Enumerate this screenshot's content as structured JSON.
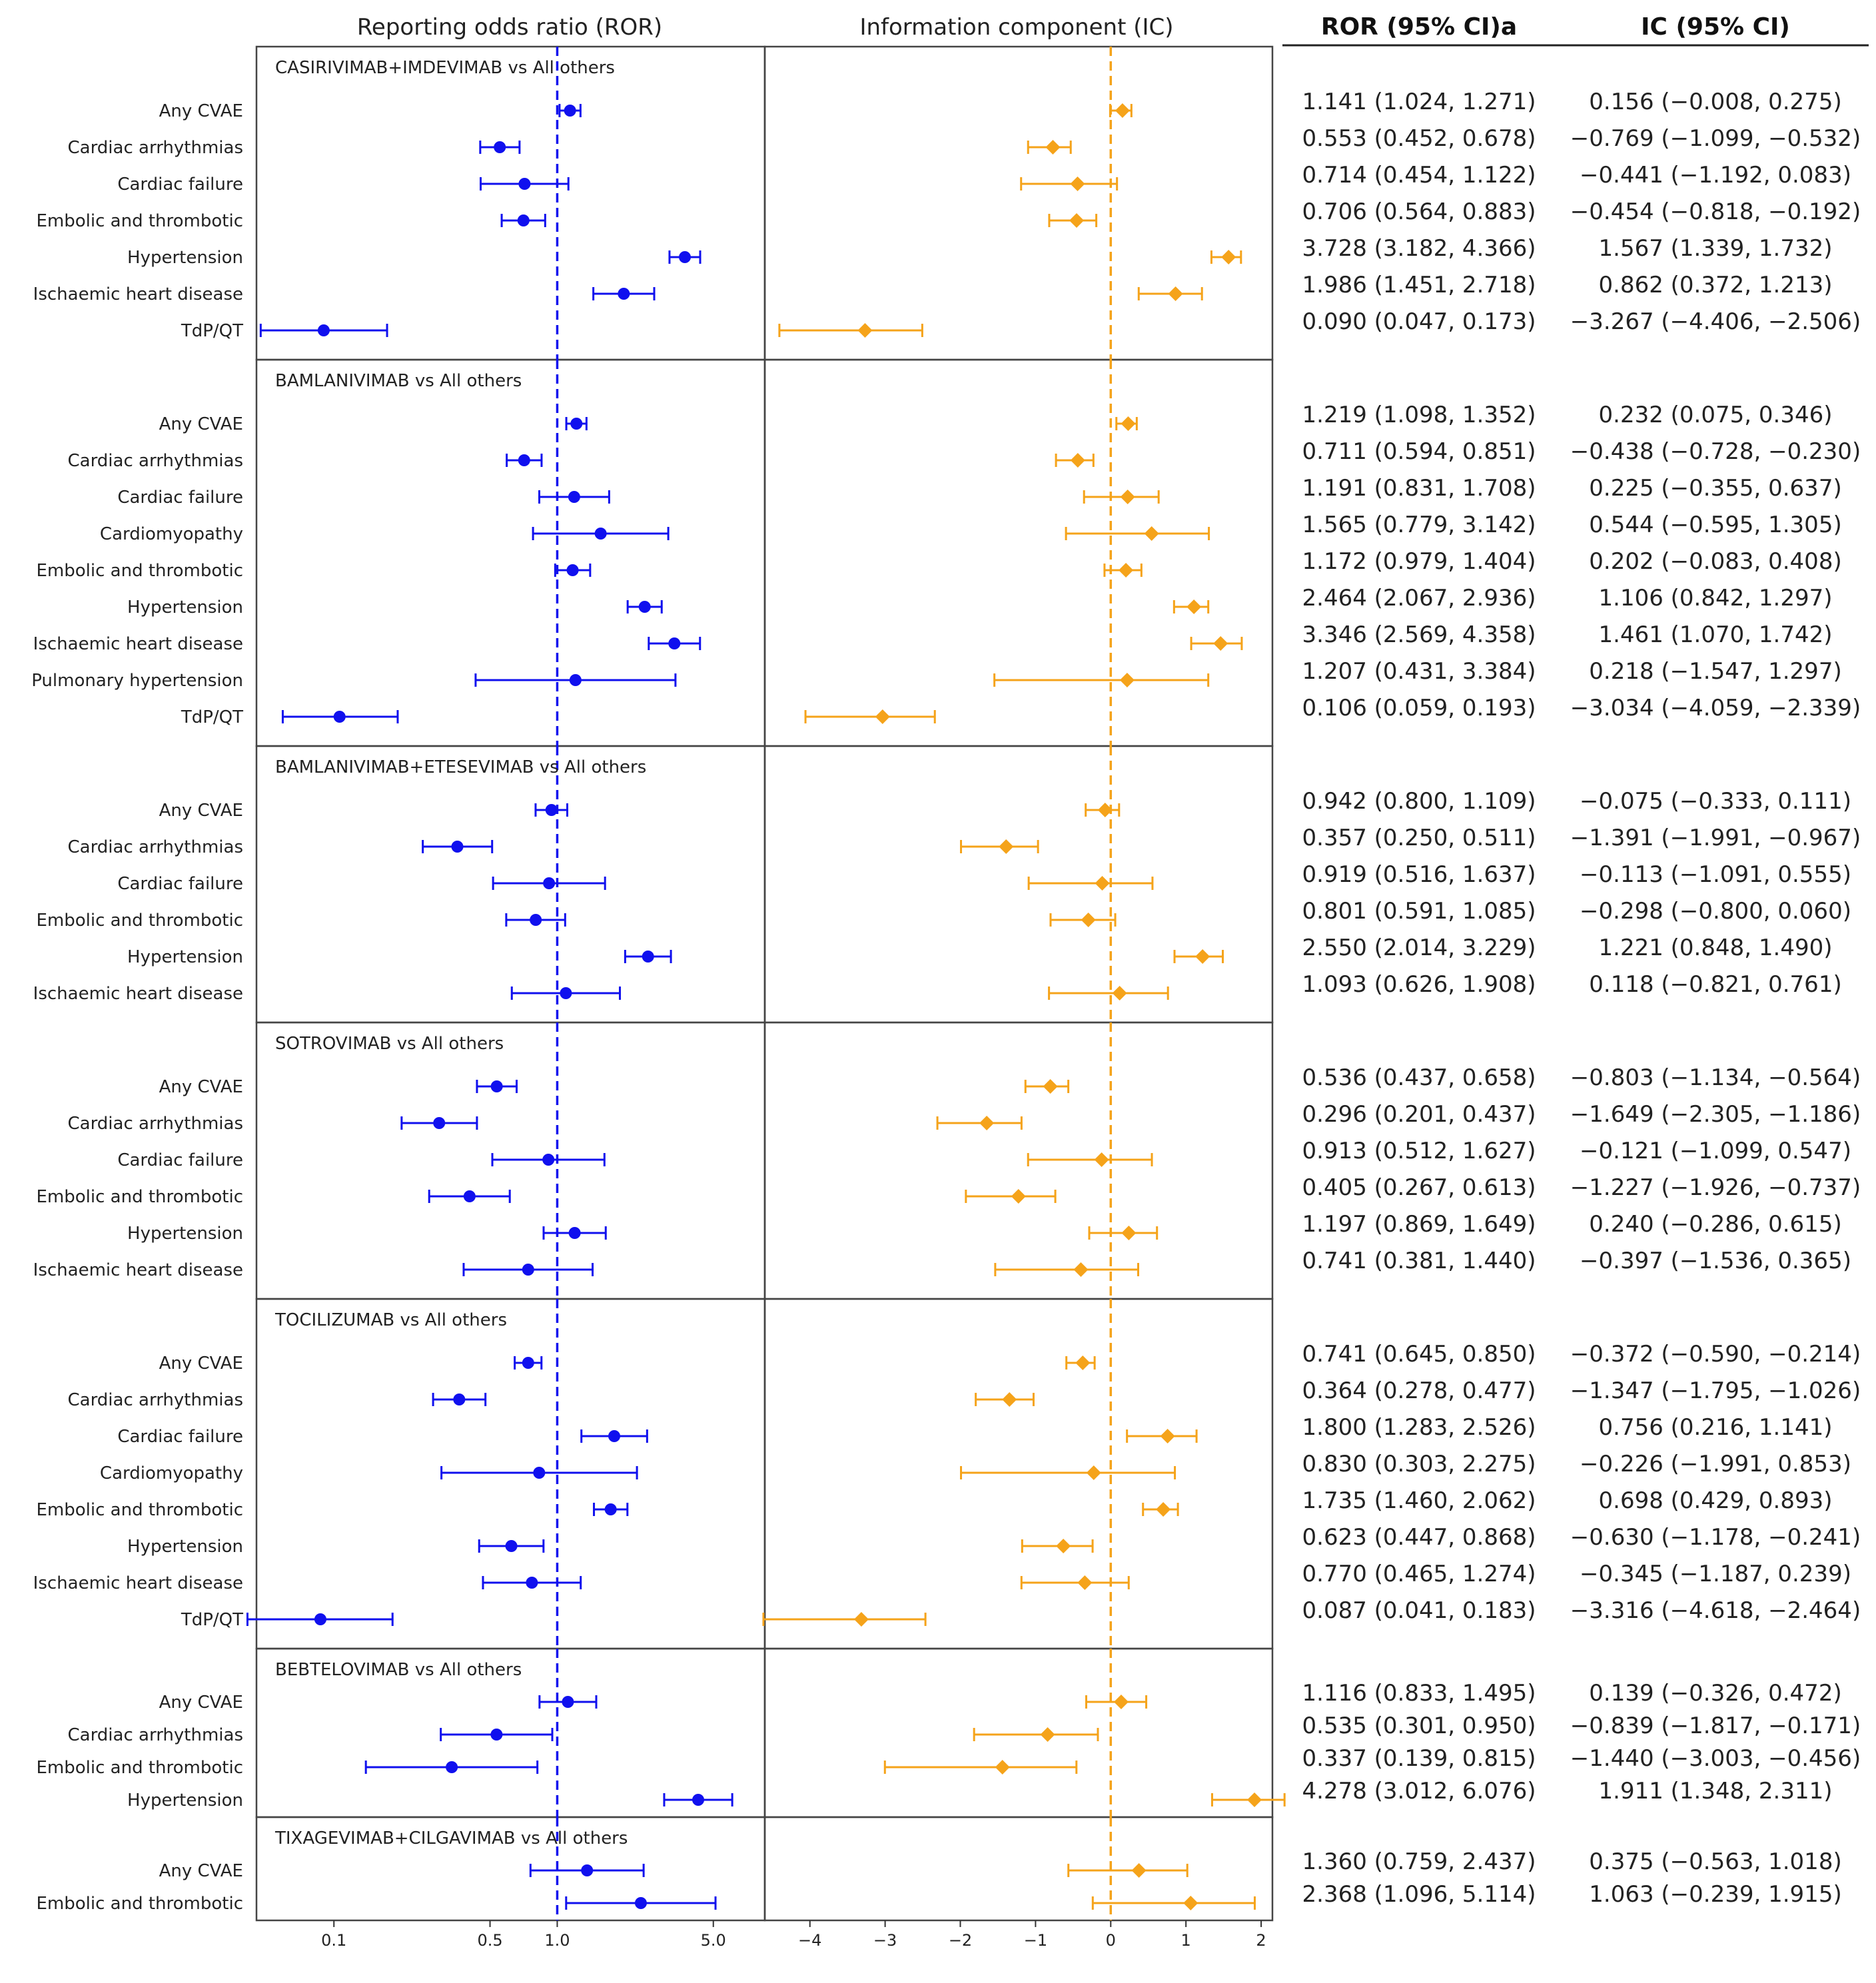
{
  "headers": {
    "ror_plot": "Reporting odds ratio (ROR)",
    "ic_plot": "Information component (IC)",
    "ror_col": "ROR (95% CI)a",
    "ic_col": "IC (95% CI)"
  },
  "colors": {
    "ror": "#1010ee",
    "ic": "#f5a31a"
  },
  "chart_data": {
    "type": "forest",
    "ror_axis": {
      "scale": "log",
      "xlim": [
        0.045,
        8.5
      ],
      "ticks": [
        0.1,
        0.5,
        1.0,
        5.0
      ],
      "tick_labels": [
        "0.1",
        "0.5",
        "1.0",
        "5.0"
      ],
      "reference": 1.0
    },
    "ic_axis": {
      "scale": "linear",
      "xlim": [
        -4.6,
        2.15
      ],
      "ticks": [
        -4,
        -3,
        -2,
        -1,
        0,
        1,
        2
      ],
      "tick_labels": [
        "−4",
        "−3",
        "−2",
        "−1",
        "0",
        "1",
        "2"
      ],
      "reference": 0
    },
    "groups": [
      {
        "title": "CASIRIVIMAB+IMDEVIMAB vs All others",
        "rows": [
          {
            "label": "Any CVAE",
            "ror": 1.141,
            "ror_lo": 1.024,
            "ror_hi": 1.271,
            "ic": 0.156,
            "ic_lo": -0.008,
            "ic_hi": 0.275,
            "ror_text": "1.141 (1.024, 1.271)",
            "ic_text": "0.156 (−0.008, 0.275)"
          },
          {
            "label": "Cardiac arrhythmias",
            "ror": 0.553,
            "ror_lo": 0.452,
            "ror_hi": 0.678,
            "ic": -0.769,
            "ic_lo": -1.099,
            "ic_hi": -0.532,
            "ror_text": "0.553 (0.452, 0.678)",
            "ic_text": "−0.769 (−1.099, −0.532)"
          },
          {
            "label": "Cardiac failure",
            "ror": 0.714,
            "ror_lo": 0.454,
            "ror_hi": 1.122,
            "ic": -0.441,
            "ic_lo": -1.192,
            "ic_hi": 0.083,
            "ror_text": "0.714 (0.454, 1.122)",
            "ic_text": "−0.441 (−1.192, 0.083)"
          },
          {
            "label": "Embolic and thrombotic",
            "ror": 0.706,
            "ror_lo": 0.564,
            "ror_hi": 0.883,
            "ic": -0.454,
            "ic_lo": -0.818,
            "ic_hi": -0.192,
            "ror_text": "0.706 (0.564, 0.883)",
            "ic_text": "−0.454 (−0.818, −0.192)"
          },
          {
            "label": "Hypertension",
            "ror": 3.728,
            "ror_lo": 3.182,
            "ror_hi": 4.366,
            "ic": 1.567,
            "ic_lo": 1.339,
            "ic_hi": 1.732,
            "ror_text": "3.728 (3.182, 4.366)",
            "ic_text": "1.567 (1.339, 1.732)"
          },
          {
            "label": "Ischaemic heart disease",
            "ror": 1.986,
            "ror_lo": 1.451,
            "ror_hi": 2.718,
            "ic": 0.862,
            "ic_lo": 0.372,
            "ic_hi": 1.213,
            "ror_text": "1.986 (1.451, 2.718)",
            "ic_text": "0.862 (0.372, 1.213)"
          },
          {
            "label": "TdP/QT",
            "ror": 0.09,
            "ror_lo": 0.047,
            "ror_hi": 0.173,
            "ic": -3.267,
            "ic_lo": -4.406,
            "ic_hi": -2.506,
            "ror_text": "0.090 (0.047, 0.173)",
            "ic_text": "−3.267 (−4.406, −2.506)"
          }
        ]
      },
      {
        "title": "BAMLANIVIMAB vs All others",
        "rows": [
          {
            "label": "Any CVAE",
            "ror": 1.219,
            "ror_lo": 1.098,
            "ror_hi": 1.352,
            "ic": 0.232,
            "ic_lo": 0.075,
            "ic_hi": 0.346,
            "ror_text": "1.219 (1.098, 1.352)",
            "ic_text": "0.232 (0.075, 0.346)"
          },
          {
            "label": "Cardiac arrhythmias",
            "ror": 0.711,
            "ror_lo": 0.594,
            "ror_hi": 0.851,
            "ic": -0.438,
            "ic_lo": -0.728,
            "ic_hi": -0.23,
            "ror_text": "0.711 (0.594, 0.851)",
            "ic_text": "−0.438 (−0.728, −0.230)"
          },
          {
            "label": "Cardiac failure",
            "ror": 1.191,
            "ror_lo": 0.831,
            "ror_hi": 1.708,
            "ic": 0.225,
            "ic_lo": -0.355,
            "ic_hi": 0.637,
            "ror_text": "1.191 (0.831, 1.708)",
            "ic_text": "0.225 (−0.355, 0.637)"
          },
          {
            "label": "Cardiomyopathy",
            "ror": 1.565,
            "ror_lo": 0.779,
            "ror_hi": 3.142,
            "ic": 0.544,
            "ic_lo": -0.595,
            "ic_hi": 1.305,
            "ror_text": "1.565 (0.779, 3.142)",
            "ic_text": "0.544 (−0.595, 1.305)"
          },
          {
            "label": "Embolic and thrombotic",
            "ror": 1.172,
            "ror_lo": 0.979,
            "ror_hi": 1.404,
            "ic": 0.202,
            "ic_lo": -0.083,
            "ic_hi": 0.408,
            "ror_text": "1.172 (0.979, 1.404)",
            "ic_text": "0.202 (−0.083, 0.408)"
          },
          {
            "label": "Hypertension",
            "ror": 2.464,
            "ror_lo": 2.067,
            "ror_hi": 2.936,
            "ic": 1.106,
            "ic_lo": 0.842,
            "ic_hi": 1.297,
            "ror_text": "2.464 (2.067, 2.936)",
            "ic_text": "1.106 (0.842, 1.297)"
          },
          {
            "label": "Ischaemic heart disease",
            "ror": 3.346,
            "ror_lo": 2.569,
            "ror_hi": 4.358,
            "ic": 1.461,
            "ic_lo": 1.07,
            "ic_hi": 1.742,
            "ror_text": "3.346 (2.569, 4.358)",
            "ic_text": "1.461 (1.070, 1.742)"
          },
          {
            "label": "Pulmonary hypertension",
            "ror": 1.207,
            "ror_lo": 0.431,
            "ror_hi": 3.384,
            "ic": 0.218,
            "ic_lo": -1.547,
            "ic_hi": 1.297,
            "ror_text": "1.207 (0.431, 3.384)",
            "ic_text": "0.218 (−1.547, 1.297)"
          },
          {
            "label": "TdP/QT",
            "ror": 0.106,
            "ror_lo": 0.059,
            "ror_hi": 0.193,
            "ic": -3.034,
            "ic_lo": -4.059,
            "ic_hi": -2.339,
            "ror_text": "0.106 (0.059, 0.193)",
            "ic_text": "−3.034 (−4.059, −2.339)"
          }
        ]
      },
      {
        "title": "BAMLANIVIMAB+ETESEVIMAB vs All others",
        "rows": [
          {
            "label": "Any CVAE",
            "ror": 0.942,
            "ror_lo": 0.8,
            "ror_hi": 1.109,
            "ic": -0.075,
            "ic_lo": -0.333,
            "ic_hi": 0.111,
            "ror_text": "0.942 (0.800, 1.109)",
            "ic_text": "−0.075 (−0.333, 0.111)"
          },
          {
            "label": "Cardiac arrhythmias",
            "ror": 0.357,
            "ror_lo": 0.25,
            "ror_hi": 0.511,
            "ic": -1.391,
            "ic_lo": -1.991,
            "ic_hi": -0.967,
            "ror_text": "0.357 (0.250, 0.511)",
            "ic_text": "−1.391 (−1.991, −0.967)"
          },
          {
            "label": "Cardiac failure",
            "ror": 0.919,
            "ror_lo": 0.516,
            "ror_hi": 1.637,
            "ic": -0.113,
            "ic_lo": -1.091,
            "ic_hi": 0.555,
            "ror_text": "0.919 (0.516, 1.637)",
            "ic_text": "−0.113 (−1.091, 0.555)"
          },
          {
            "label": "Embolic and thrombotic",
            "ror": 0.801,
            "ror_lo": 0.591,
            "ror_hi": 1.085,
            "ic": -0.298,
            "ic_lo": -0.8,
            "ic_hi": 0.06,
            "ror_text": "0.801 (0.591, 1.085)",
            "ic_text": "−0.298 (−0.800, 0.060)"
          },
          {
            "label": "Hypertension",
            "ror": 2.55,
            "ror_lo": 2.014,
            "ror_hi": 3.229,
            "ic": 1.221,
            "ic_lo": 0.848,
            "ic_hi": 1.49,
            "ror_text": "2.550 (2.014, 3.229)",
            "ic_text": "1.221 (0.848, 1.490)"
          },
          {
            "label": "Ischaemic heart disease",
            "ror": 1.093,
            "ror_lo": 0.626,
            "ror_hi": 1.908,
            "ic": 0.118,
            "ic_lo": -0.821,
            "ic_hi": 0.761,
            "ror_text": "1.093 (0.626, 1.908)",
            "ic_text": "0.118 (−0.821, 0.761)"
          }
        ]
      },
      {
        "title": "SOTROVIMAB vs All others",
        "rows": [
          {
            "label": "Any CVAE",
            "ror": 0.536,
            "ror_lo": 0.437,
            "ror_hi": 0.658,
            "ic": -0.803,
            "ic_lo": -1.134,
            "ic_hi": -0.564,
            "ror_text": "0.536 (0.437, 0.658)",
            "ic_text": "−0.803 (−1.134, −0.564)"
          },
          {
            "label": "Cardiac arrhythmias",
            "ror": 0.296,
            "ror_lo": 0.201,
            "ror_hi": 0.437,
            "ic": -1.649,
            "ic_lo": -2.305,
            "ic_hi": -1.186,
            "ror_text": "0.296 (0.201, 0.437)",
            "ic_text": "−1.649 (−2.305, −1.186)"
          },
          {
            "label": "Cardiac failure",
            "ror": 0.913,
            "ror_lo": 0.512,
            "ror_hi": 1.627,
            "ic": -0.121,
            "ic_lo": -1.099,
            "ic_hi": 0.547,
            "ror_text": "0.913 (0.512, 1.627)",
            "ic_text": "−0.121 (−1.099, 0.547)"
          },
          {
            "label": "Embolic and thrombotic",
            "ror": 0.405,
            "ror_lo": 0.267,
            "ror_hi": 0.613,
            "ic": -1.227,
            "ic_lo": -1.926,
            "ic_hi": -0.737,
            "ror_text": "0.405 (0.267, 0.613)",
            "ic_text": "−1.227 (−1.926, −0.737)"
          },
          {
            "label": "Hypertension",
            "ror": 1.197,
            "ror_lo": 0.869,
            "ror_hi": 1.649,
            "ic": 0.24,
            "ic_lo": -0.286,
            "ic_hi": 0.615,
            "ror_text": "1.197 (0.869, 1.649)",
            "ic_text": "0.240 (−0.286, 0.615)"
          },
          {
            "label": "Ischaemic heart disease",
            "ror": 0.741,
            "ror_lo": 0.381,
            "ror_hi": 1.44,
            "ic": -0.397,
            "ic_lo": -1.536,
            "ic_hi": 0.365,
            "ror_text": "0.741 (0.381, 1.440)",
            "ic_text": "−0.397 (−1.536, 0.365)"
          }
        ]
      },
      {
        "title": "TOCILIZUMAB vs All others",
        "rows": [
          {
            "label": "Any CVAE",
            "ror": 0.741,
            "ror_lo": 0.645,
            "ror_hi": 0.85,
            "ic": -0.372,
            "ic_lo": -0.59,
            "ic_hi": -0.214,
            "ror_text": "0.741 (0.645, 0.850)",
            "ic_text": "−0.372 (−0.590, −0.214)"
          },
          {
            "label": "Cardiac arrhythmias",
            "ror": 0.364,
            "ror_lo": 0.278,
            "ror_hi": 0.477,
            "ic": -1.347,
            "ic_lo": -1.795,
            "ic_hi": -1.026,
            "ror_text": "0.364 (0.278, 0.477)",
            "ic_text": "−1.347 (−1.795, −1.026)"
          },
          {
            "label": "Cardiac failure",
            "ror": 1.8,
            "ror_lo": 1.283,
            "ror_hi": 2.526,
            "ic": 0.756,
            "ic_lo": 0.216,
            "ic_hi": 1.141,
            "ror_text": "1.800 (1.283, 2.526)",
            "ic_text": "0.756 (0.216, 1.141)"
          },
          {
            "label": "Cardiomyopathy",
            "ror": 0.83,
            "ror_lo": 0.303,
            "ror_hi": 2.275,
            "ic": -0.226,
            "ic_lo": -1.991,
            "ic_hi": 0.853,
            "ror_text": "0.830 (0.303, 2.275)",
            "ic_text": "−0.226 (−1.991, 0.853)"
          },
          {
            "label": "Embolic and thrombotic",
            "ror": 1.735,
            "ror_lo": 1.46,
            "ror_hi": 2.062,
            "ic": 0.698,
            "ic_lo": 0.429,
            "ic_hi": 0.893,
            "ror_text": "1.735 (1.460, 2.062)",
            "ic_text": "0.698 (0.429, 0.893)"
          },
          {
            "label": "Hypertension",
            "ror": 0.623,
            "ror_lo": 0.447,
            "ror_hi": 0.868,
            "ic": -0.63,
            "ic_lo": -1.178,
            "ic_hi": -0.241,
            "ror_text": "0.623 (0.447, 0.868)",
            "ic_text": "−0.630 (−1.178, −0.241)"
          },
          {
            "label": "Ischaemic heart disease",
            "ror": 0.77,
            "ror_lo": 0.465,
            "ror_hi": 1.274,
            "ic": -0.345,
            "ic_lo": -1.187,
            "ic_hi": 0.239,
            "ror_text": "0.770 (0.465, 1.274)",
            "ic_text": "−0.345 (−1.187, 0.239)"
          },
          {
            "label": "TdP/QT",
            "ror": 0.087,
            "ror_lo": 0.041,
            "ror_hi": 0.183,
            "ic": -3.316,
            "ic_lo": -4.618,
            "ic_hi": -2.464,
            "ror_text": "0.087 (0.041, 0.183)",
            "ic_text": "−3.316 (−4.618, −2.464)"
          }
        ]
      },
      {
        "title": "BEBTELOVIMAB vs All others",
        "rows": [
          {
            "label": "Any CVAE",
            "ror": 1.116,
            "ror_lo": 0.833,
            "ror_hi": 1.495,
            "ic": 0.139,
            "ic_lo": -0.326,
            "ic_hi": 0.472,
            "ror_text": "1.116 (0.833, 1.495)",
            "ic_text": "0.139 (−0.326, 0.472)"
          },
          {
            "label": "Cardiac arrhythmias",
            "ror": 0.535,
            "ror_lo": 0.301,
            "ror_hi": 0.95,
            "ic": -0.839,
            "ic_lo": -1.817,
            "ic_hi": -0.171,
            "ror_text": "0.535 (0.301, 0.950)",
            "ic_text": "−0.839 (−1.817, −0.171)"
          },
          {
            "label": "Embolic and thrombotic",
            "ror": 0.337,
            "ror_lo": 0.139,
            "ror_hi": 0.815,
            "ic": -1.44,
            "ic_lo": -3.003,
            "ic_hi": -0.456,
            "ror_text": "0.337 (0.139, 0.815)",
            "ic_text": "−1.440 (−3.003, −0.456)"
          },
          {
            "label": "Hypertension",
            "ror": 4.278,
            "ror_lo": 3.012,
            "ror_hi": 6.076,
            "ic": 1.911,
            "ic_lo": 1.348,
            "ic_hi": 2.311,
            "ror_text": "4.278 (3.012, 6.076)",
            "ic_text": "1.911 (1.348, 2.311)"
          }
        ]
      },
      {
        "title": "TIXAGEVIMAB+CILGAVIMAB vs All others",
        "rows": [
          {
            "label": "Any CVAE",
            "ror": 1.36,
            "ror_lo": 0.759,
            "ror_hi": 2.437,
            "ic": 0.375,
            "ic_lo": -0.563,
            "ic_hi": 1.018,
            "ror_text": "1.360 (0.759, 2.437)",
            "ic_text": "0.375 (−0.563, 1.018)"
          },
          {
            "label": "Embolic and thrombotic",
            "ror": 2.368,
            "ror_lo": 1.096,
            "ror_hi": 5.114,
            "ic": 1.063,
            "ic_lo": -0.239,
            "ic_hi": 1.915,
            "ror_text": "2.368 (1.096, 5.114)",
            "ic_text": "1.063 (−0.239, 1.915)"
          }
        ]
      }
    ]
  }
}
